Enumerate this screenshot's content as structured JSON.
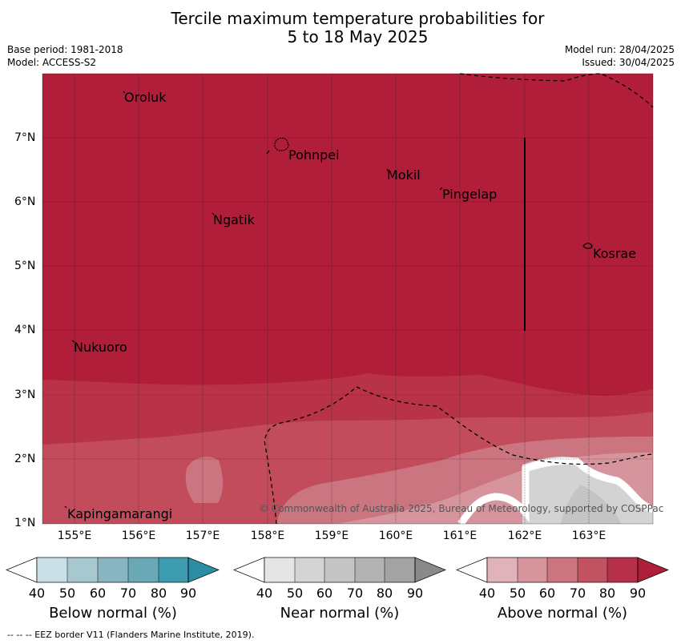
{
  "title": {
    "line1": "Tercile maximum temperature probabilities for",
    "line2": "5 to 18 May 2025"
  },
  "meta": {
    "base_period": "Base period: 1981-2018",
    "model": "Model: ACCESS-S2",
    "model_run": "Model run: 28/04/2025",
    "issued": "Issued: 30/04/2025"
  },
  "map": {
    "latitude_labels": [
      "7°N",
      "6°N",
      "5°N",
      "4°N",
      "3°N",
      "2°N",
      "1°N"
    ],
    "longitude_labels": [
      "155°E",
      "156°E",
      "157°E",
      "158°E",
      "159°E",
      "160°E",
      "161°E",
      "162°E",
      "163°E"
    ],
    "extent": {
      "lon_min": 154.5,
      "lon_max": 164.0,
      "lat_min": 1.0,
      "lat_max": 8.0
    },
    "places": [
      {
        "name": "Oroluk",
        "lon": 156.0,
        "lat": 7.6
      },
      {
        "name": "Pohnpei",
        "lon": 158.2,
        "lat": 6.9
      },
      {
        "name": "Mokil",
        "lon": 159.8,
        "lat": 6.4
      },
      {
        "name": "Pingelap",
        "lon": 160.7,
        "lat": 6.2
      },
      {
        "name": "Ngatik",
        "lon": 157.1,
        "lat": 5.8
      },
      {
        "name": "Kosrae",
        "lon": 163.0,
        "lat": 5.3
      },
      {
        "name": "Nukuoro",
        "lon": 154.9,
        "lat": 3.8
      },
      {
        "name": "Kapingamarangi",
        "lon": 154.8,
        "lat": 1.1
      }
    ],
    "copyright": "© Commonwealth of Australia 2025, Bureau of Meteorology, supported by COSPPac",
    "colors": {
      "above_90": "#b01e3a",
      "above_80": "#b83348",
      "above_70": "#c34c5c",
      "above_60": "#cb7580",
      "above_50": "#d6959d",
      "near_50": "#d3d3d3",
      "near_60": "#c4c4c4",
      "white": "#ffffff"
    }
  },
  "colorbars": [
    {
      "title": "Below normal (%)",
      "ticks": [
        "40",
        "50",
        "60",
        "70",
        "80",
        "90"
      ],
      "colors": [
        "#ffffff",
        "#c8e0e6",
        "#a7c8cf",
        "#88b6c0",
        "#6aa8b5",
        "#3d9baf",
        "#2c8ca3"
      ]
    },
    {
      "title": "Near normal (%)",
      "ticks": [
        "40",
        "50",
        "60",
        "70",
        "80",
        "90"
      ],
      "colors": [
        "#ffffff",
        "#e5e5e5",
        "#d4d4d4",
        "#c4c4c4",
        "#b3b3b3",
        "#a3a3a3",
        "#8a8a8a"
      ]
    },
    {
      "title": "Above normal (%)",
      "ticks": [
        "40",
        "50",
        "60",
        "70",
        "80",
        "90"
      ],
      "colors": [
        "#ffffff",
        "#e0b3bb",
        "#d6959d",
        "#cb7580",
        "#c0535f",
        "#b7304a",
        "#b01e3a"
      ]
    }
  ],
  "footer": "--  --  -- EEZ border V11 (Flanders Marine Institute, 2019)."
}
